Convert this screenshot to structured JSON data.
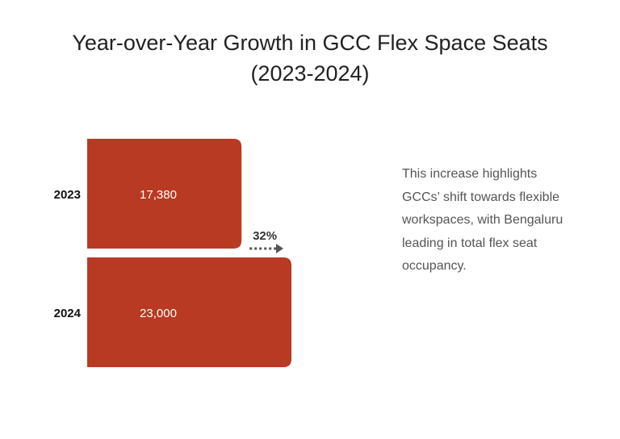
{
  "title_line1": "Year-over-Year Growth in GCC Flex Space Seats",
  "title_line2": "(2023-2024)",
  "chart_data": {
    "type": "bar",
    "orientation": "horizontal",
    "categories": [
      "2023",
      "2024"
    ],
    "values": [
      17380,
      23000
    ],
    "value_labels": [
      "17,380",
      "23,000"
    ],
    "growth_label": "32%",
    "xlabel": "",
    "ylabel": ""
  },
  "note": "This increase highlights GCCs’ shift towards flexible workspaces, with Bengaluru leading in total flex seat occupancy.",
  "colors": {
    "bar": "#b83a22",
    "arrow": "#555555",
    "title": "#222222"
  }
}
